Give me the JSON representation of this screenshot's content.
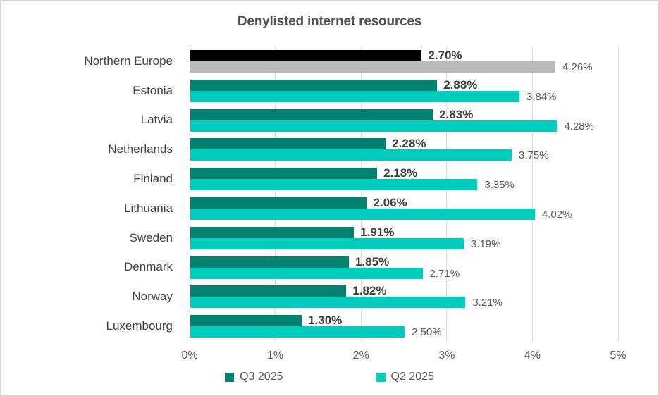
{
  "title": "Denylisted internet resources",
  "chart_data": {
    "type": "bar",
    "orientation": "horizontal",
    "title": "Denylisted internet resources",
    "categories": [
      "Northern Europe",
      "Estonia",
      "Latvia",
      "Netherlands",
      "Finland",
      "Lithuania",
      "Sweden",
      "Denmark",
      "Norway",
      "Luxembourg"
    ],
    "series": [
      {
        "name": "Q3 2025",
        "color": "#028171",
        "highlight_color": "#000000",
        "values": [
          2.7,
          2.88,
          2.83,
          2.28,
          2.18,
          2.06,
          1.91,
          1.85,
          1.82,
          1.3
        ],
        "labels": [
          "2.70%",
          "2.88%",
          "2.83%",
          "2.28%",
          "2.18%",
          "2.06%",
          "1.91%",
          "1.85%",
          "1.82%",
          "1.30%"
        ]
      },
      {
        "name": "Q2 2025",
        "color": "#00CCBE",
        "highlight_color": "#B9B9B9",
        "values": [
          4.26,
          3.84,
          4.28,
          3.75,
          3.35,
          4.02,
          3.19,
          2.71,
          3.21,
          2.5
        ],
        "labels": [
          "4.26%",
          "3.84%",
          "4.28%",
          "3.75%",
          "3.35%",
          "4.02%",
          "3.19%",
          "2.71%",
          "3.21%",
          "2.50%"
        ]
      }
    ],
    "highlight_index": 0,
    "xlim": [
      0,
      5
    ],
    "x_tick_labels": [
      "0%",
      "1%",
      "2%",
      "3%",
      "4%",
      "5%"
    ],
    "grid": true,
    "legend_position": "bottom",
    "legend": [
      "Q3 2025",
      "Q2 2025"
    ],
    "colors": {
      "grid": "#D9D9D9",
      "text_primary": "#404040",
      "text_secondary": "#595959",
      "frame_border": "#D2D2D2"
    }
  }
}
